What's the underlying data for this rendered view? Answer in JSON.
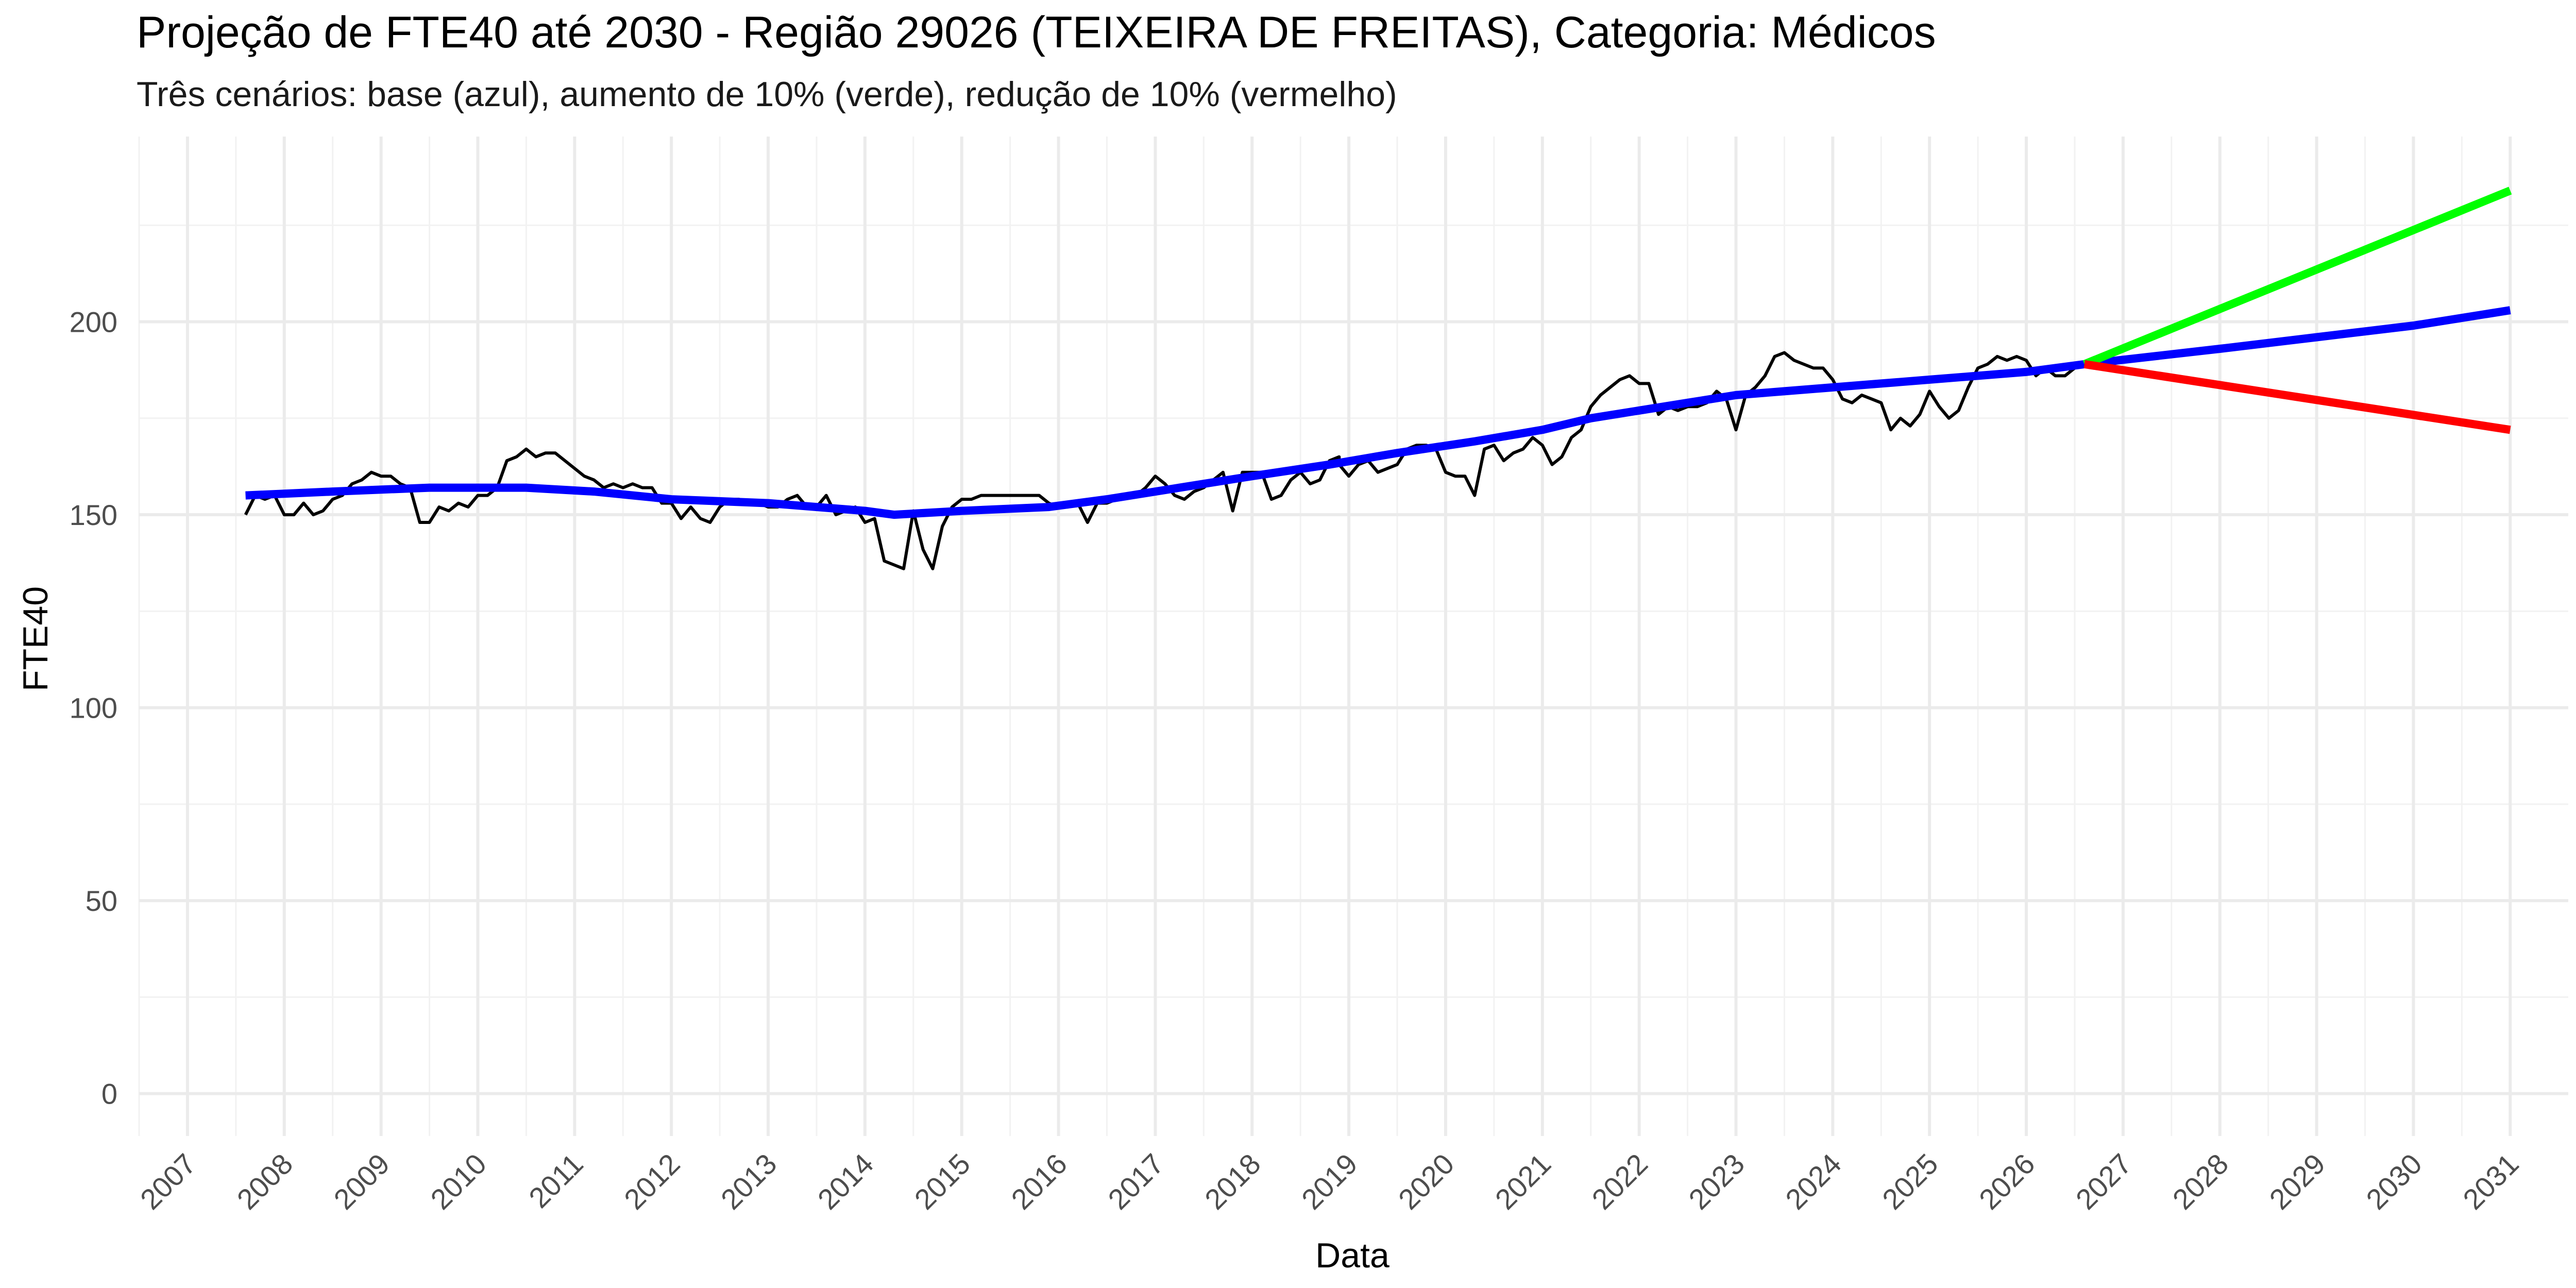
{
  "chart_data": {
    "type": "line",
    "title": "Projeção de FTE40 até 2030 - Região 29026 (TEIXEIRA DE FREITAS), Categoria: Médicos",
    "subtitle": "Três cenários: base (azul), aumento de 10% (verde), redução de 10% (vermelho)",
    "xlabel": "Data",
    "ylabel": "FTE40",
    "xlim": [
      2006.5,
      2031.6
    ],
    "ylim": [
      -11,
      248
    ],
    "x_ticks": [
      "2007",
      "2008",
      "2009",
      "2010",
      "2011",
      "2012",
      "2013",
      "2014",
      "2015",
      "2016",
      "2017",
      "2018",
      "2019",
      "2020",
      "2021",
      "2022",
      "2023",
      "2024",
      "2025",
      "2026",
      "2027",
      "2028",
      "2029",
      "2030",
      "2031"
    ],
    "y_ticks": [
      0,
      50,
      100,
      150,
      200
    ],
    "grid": true,
    "legend": "none",
    "series": [
      {
        "color": "#000000",
        "points": [
          [
            2007.6,
            150
          ],
          [
            2007.7,
            155
          ],
          [
            2007.8,
            154
          ],
          [
            2007.9,
            155
          ],
          [
            2008.0,
            150
          ],
          [
            2008.1,
            150
          ],
          [
            2008.2,
            153
          ],
          [
            2008.3,
            150
          ],
          [
            2008.4,
            151
          ],
          [
            2008.5,
            154
          ],
          [
            2008.6,
            155
          ],
          [
            2008.7,
            158
          ],
          [
            2008.8,
            159
          ],
          [
            2008.9,
            161
          ],
          [
            2009.0,
            160
          ],
          [
            2009.1,
            160
          ],
          [
            2009.2,
            158
          ],
          [
            2009.3,
            157
          ],
          [
            2009.4,
            148
          ],
          [
            2009.5,
            148
          ],
          [
            2009.6,
            152
          ],
          [
            2009.7,
            151
          ],
          [
            2009.8,
            153
          ],
          [
            2009.9,
            152
          ],
          [
            2010.0,
            155
          ],
          [
            2010.1,
            155
          ],
          [
            2010.2,
            157
          ],
          [
            2010.3,
            164
          ],
          [
            2010.4,
            165
          ],
          [
            2010.5,
            167
          ],
          [
            2010.6,
            165
          ],
          [
            2010.7,
            166
          ],
          [
            2010.8,
            166
          ],
          [
            2010.9,
            164
          ],
          [
            2011.0,
            162
          ],
          [
            2011.1,
            160
          ],
          [
            2011.2,
            159
          ],
          [
            2011.3,
            157
          ],
          [
            2011.4,
            158
          ],
          [
            2011.5,
            157
          ],
          [
            2011.6,
            158
          ],
          [
            2011.7,
            157
          ],
          [
            2011.8,
            157
          ],
          [
            2011.9,
            153
          ],
          [
            2012.0,
            153
          ],
          [
            2012.1,
            149
          ],
          [
            2012.2,
            152
          ],
          [
            2012.3,
            149
          ],
          [
            2012.4,
            148
          ],
          [
            2012.5,
            152
          ],
          [
            2012.6,
            154
          ],
          [
            2012.7,
            154
          ],
          [
            2012.8,
            153
          ],
          [
            2012.9,
            153
          ],
          [
            2013.0,
            152
          ],
          [
            2013.1,
            152
          ],
          [
            2013.2,
            154
          ],
          [
            2013.3,
            155
          ],
          [
            2013.4,
            152
          ],
          [
            2013.5,
            152
          ],
          [
            2013.6,
            155
          ],
          [
            2013.7,
            150
          ],
          [
            2013.8,
            151
          ],
          [
            2013.9,
            152
          ],
          [
            2014.0,
            148
          ],
          [
            2014.1,
            149
          ],
          [
            2014.2,
            138
          ],
          [
            2014.3,
            137
          ],
          [
            2014.4,
            136
          ],
          [
            2014.5,
            151
          ],
          [
            2014.6,
            141
          ],
          [
            2014.7,
            136
          ],
          [
            2014.8,
            147
          ],
          [
            2014.9,
            152
          ],
          [
            2015.0,
            154
          ],
          [
            2015.1,
            154
          ],
          [
            2015.2,
            155
          ],
          [
            2015.3,
            155
          ],
          [
            2015.4,
            155
          ],
          [
            2015.5,
            155
          ],
          [
            2015.6,
            155
          ],
          [
            2015.7,
            155
          ],
          [
            2015.8,
            155
          ],
          [
            2015.9,
            153
          ],
          [
            2016.0,
            152
          ],
          [
            2016.1,
            152
          ],
          [
            2016.2,
            153
          ],
          [
            2016.3,
            148
          ],
          [
            2016.4,
            153
          ],
          [
            2016.5,
            153
          ],
          [
            2016.6,
            154
          ],
          [
            2016.7,
            155
          ],
          [
            2016.8,
            155
          ],
          [
            2016.9,
            157
          ],
          [
            2017.0,
            160
          ],
          [
            2017.1,
            158
          ],
          [
            2017.2,
            155
          ],
          [
            2017.3,
            154
          ],
          [
            2017.4,
            156
          ],
          [
            2017.5,
            157
          ],
          [
            2017.6,
            159
          ],
          [
            2017.7,
            161
          ],
          [
            2017.8,
            151
          ],
          [
            2017.9,
            161
          ],
          [
            2018.0,
            161
          ],
          [
            2018.1,
            161
          ],
          [
            2018.2,
            154
          ],
          [
            2018.3,
            155
          ],
          [
            2018.4,
            159
          ],
          [
            2018.5,
            161
          ],
          [
            2018.6,
            158
          ],
          [
            2018.7,
            159
          ],
          [
            2018.8,
            164
          ],
          [
            2018.9,
            165
          ],
          [
            2018.9,
            163
          ],
          [
            2019.0,
            160
          ],
          [
            2019.1,
            163
          ],
          [
            2019.2,
            164
          ],
          [
            2019.3,
            161
          ],
          [
            2019.4,
            162
          ],
          [
            2019.5,
            163
          ],
          [
            2019.6,
            167
          ],
          [
            2019.7,
            168
          ],
          [
            2019.8,
            168
          ],
          [
            2019.9,
            167
          ],
          [
            2020.0,
            161
          ],
          [
            2020.1,
            160
          ],
          [
            2020.2,
            160
          ],
          [
            2020.3,
            155
          ],
          [
            2020.4,
            167
          ],
          [
            2020.5,
            168
          ],
          [
            2020.6,
            164
          ],
          [
            2020.7,
            166
          ],
          [
            2020.8,
            167
          ],
          [
            2020.9,
            170
          ],
          [
            2021.0,
            168
          ],
          [
            2021.1,
            163
          ],
          [
            2021.2,
            165
          ],
          [
            2021.3,
            170
          ],
          [
            2021.4,
            172
          ],
          [
            2021.5,
            178
          ],
          [
            2021.6,
            181
          ],
          [
            2021.7,
            183
          ],
          [
            2021.8,
            185
          ],
          [
            2021.9,
            186
          ],
          [
            2022.0,
            184
          ],
          [
            2022.1,
            184
          ],
          [
            2022.2,
            176
          ],
          [
            2022.3,
            178
          ],
          [
            2022.4,
            177
          ],
          [
            2022.5,
            178
          ],
          [
            2022.6,
            178
          ],
          [
            2022.7,
            179
          ],
          [
            2022.8,
            182
          ],
          [
            2022.9,
            180
          ],
          [
            2023.0,
            172
          ],
          [
            2023.1,
            181
          ],
          [
            2023.2,
            183
          ],
          [
            2023.3,
            186
          ],
          [
            2023.4,
            191
          ],
          [
            2023.5,
            192
          ],
          [
            2023.6,
            190
          ],
          [
            2023.7,
            189
          ],
          [
            2023.8,
            188
          ],
          [
            2023.9,
            188
          ],
          [
            2024.0,
            185
          ],
          [
            2024.1,
            180
          ],
          [
            2024.2,
            179
          ],
          [
            2024.3,
            181
          ],
          [
            2024.4,
            180
          ],
          [
            2024.5,
            179
          ],
          [
            2024.6,
            172
          ],
          [
            2024.7,
            175
          ],
          [
            2024.8,
            173
          ],
          [
            2024.9,
            176
          ],
          [
            2025.0,
            182
          ],
          [
            2025.1,
            178
          ],
          [
            2025.2,
            175
          ],
          [
            2025.3,
            177
          ],
          [
            2025.4,
            183
          ],
          [
            2025.5,
            188
          ],
          [
            2025.6,
            189
          ],
          [
            2025.7,
            191
          ],
          [
            2025.8,
            190
          ],
          [
            2025.9,
            191
          ],
          [
            2026.0,
            190
          ],
          [
            2026.1,
            186
          ],
          [
            2026.2,
            188
          ],
          [
            2026.3,
            186
          ],
          [
            2026.4,
            186
          ],
          [
            2026.5,
            188
          ],
          [
            2026.6,
            189
          ]
        ]
      },
      {
        "color": "#0000ff",
        "points": [
          [
            2007.6,
            155
          ],
          [
            2008.5,
            156
          ],
          [
            2009.5,
            157
          ],
          [
            2010.5,
            157
          ],
          [
            2011.2,
            156
          ],
          [
            2012.0,
            154
          ],
          [
            2013.0,
            153
          ],
          [
            2014.0,
            151
          ],
          [
            2014.3,
            150
          ],
          [
            2015.0,
            151
          ],
          [
            2015.9,
            152
          ],
          [
            2016.5,
            154
          ],
          [
            2017.0,
            156
          ],
          [
            2018.0,
            160
          ],
          [
            2018.8,
            163
          ],
          [
            2019.5,
            166
          ],
          [
            2020.3,
            169
          ],
          [
            2021.0,
            172
          ],
          [
            2021.5,
            175
          ],
          [
            2022.0,
            177
          ],
          [
            2022.5,
            179
          ],
          [
            2023.0,
            181
          ],
          [
            2023.5,
            182
          ],
          [
            2024.0,
            183
          ],
          [
            2024.5,
            184
          ],
          [
            2025.0,
            185
          ],
          [
            2025.5,
            186
          ],
          [
            2026.0,
            187
          ],
          [
            2026.6,
            189
          ],
          [
            2028.0,
            193
          ],
          [
            2029.0,
            196
          ],
          [
            2030.0,
            199
          ],
          [
            2031.0,
            203
          ]
        ]
      },
      {
        "color": "#00ff00",
        "points": [
          [
            2026.6,
            189
          ],
          [
            2031.0,
            234
          ]
        ]
      },
      {
        "color": "#ff0000",
        "points": [
          [
            2026.6,
            189
          ],
          [
            2031.0,
            172
          ]
        ]
      }
    ]
  }
}
